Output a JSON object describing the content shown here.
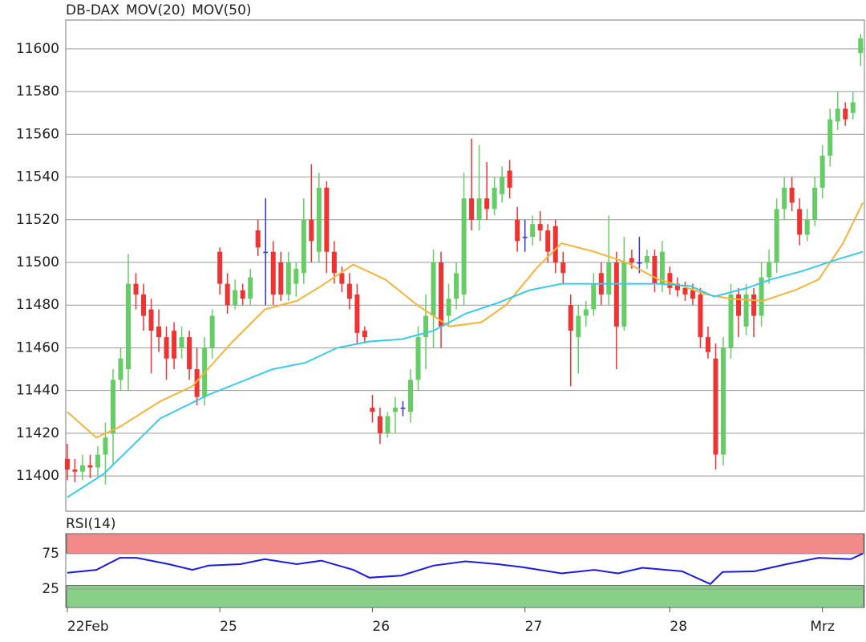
{
  "chart_data": [
    {
      "type": "candlestick",
      "x": [
        0,
        1,
        2,
        3,
        4,
        5,
        6,
        7,
        8,
        9,
        10,
        11,
        12,
        13,
        14,
        15,
        16,
        17,
        18,
        19,
        20,
        21,
        22,
        23,
        24,
        25,
        26,
        27,
        28,
        29,
        30,
        31,
        32,
        33,
        34,
        35,
        36,
        37,
        38,
        39,
        40,
        41,
        42,
        43,
        44,
        45,
        46,
        47,
        48,
        49,
        50,
        51,
        52,
        53,
        54,
        55,
        56,
        57,
        58,
        59,
        60,
        61,
        62,
        63,
        64,
        65,
        66,
        67,
        68,
        69,
        70,
        71,
        72,
        73,
        74,
        75,
        76,
        77,
        78,
        79,
        80,
        81,
        82,
        83,
        84,
        85,
        86,
        87,
        88,
        89,
        90,
        91,
        92,
        93,
        94,
        95,
        96,
        97,
        98,
        99,
        100,
        101,
        102,
        103,
        104
      ],
      "xlim": [
        -0.2,
        104.5
      ],
      "ylim": [
        11383.5,
        11613.5
      ],
      "yticks": [
        11400,
        11420,
        11440,
        11460,
        11480,
        11500,
        11520,
        11540,
        11560,
        11580,
        11600
      ],
      "grid": true,
      "series": [
        {
          "name": "DB-DAX",
          "color": "#f04a30",
          "up_color": "#66cc66",
          "down_color": "#ee3333",
          "flat_color": "#3333cc",
          "open": [
            11408,
            11403,
            11402,
            11405,
            11404,
            11410,
            11420,
            11445,
            11450,
            11490,
            11485,
            11478,
            11470,
            11465,
            11468,
            11460,
            11465,
            11450,
            11437,
            11460,
            11505,
            11490,
            11480,
            11487,
            11483,
            11515,
            11505,
            11505,
            11500,
            11485,
            11490,
            11495,
            11520,
            11505,
            11535,
            11505,
            11495,
            11490,
            11485,
            11468,
            11432,
            11428,
            11420,
            11430,
            11432,
            11430,
            11445,
            11465,
            11475,
            11500,
            11475,
            11483,
            11485,
            11530,
            11520,
            11530,
            11525,
            11532,
            11543,
            11520,
            11512,
            11512,
            11518,
            11515,
            11517,
            11500,
            11480,
            11465,
            11475,
            11478,
            11495,
            11485,
            11500,
            11470,
            11502,
            11500,
            11500,
            11503,
            11490,
            11495,
            11490,
            11488,
            11487,
            11485,
            11465,
            11455,
            11410,
            11460,
            11485,
            11470,
            11485,
            11475,
            11493,
            11500,
            11525,
            11535,
            11525,
            11513,
            11520,
            11535,
            11550,
            11566,
            11572,
            11570,
            11598
          ],
          "high": [
            11415,
            11408,
            11410,
            11410,
            11414,
            11425,
            11450,
            11460,
            11504,
            11495,
            11490,
            11483,
            11478,
            11470,
            11472,
            11470,
            11468,
            11460,
            11465,
            11478,
            11507,
            11495,
            11492,
            11490,
            11497,
            11520,
            11530,
            11510,
            11505,
            11505,
            11500,
            11530,
            11546,
            11542,
            11538,
            11510,
            11498,
            11495,
            11490,
            11470,
            11438,
            11432,
            11430,
            11437,
            11435,
            11450,
            11470,
            11485,
            11506,
            11505,
            11490,
            11500,
            11542,
            11558,
            11555,
            11547,
            11540,
            11545,
            11548,
            11526,
            11520,
            11522,
            11524,
            11518,
            11520,
            11505,
            11485,
            11480,
            11482,
            11495,
            11500,
            11522,
            11505,
            11512,
            11506,
            11512,
            11506,
            11506,
            11510,
            11498,
            11493,
            11491,
            11490,
            11488,
            11470,
            11462,
            11465,
            11490,
            11488,
            11490,
            11488,
            11500,
            11506,
            11530,
            11540,
            11540,
            11530,
            11525,
            11540,
            11555,
            11572,
            11580,
            11575,
            11580,
            11607
          ],
          "low": [
            11398,
            11397,
            11398,
            11399,
            11400,
            11396,
            11405,
            11440,
            11440,
            11478,
            11468,
            11448,
            11458,
            11445,
            11450,
            11455,
            11445,
            11433,
            11433,
            11455,
            11485,
            11476,
            11478,
            11480,
            11480,
            11503,
            11480,
            11480,
            11482,
            11482,
            11484,
            11490,
            11500,
            11500,
            11495,
            11490,
            11486,
            11478,
            11462,
            11462,
            11425,
            11415,
            11418,
            11420,
            11428,
            11425,
            11440,
            11450,
            11460,
            11460,
            11470,
            11478,
            11480,
            11515,
            11515,
            11520,
            11522,
            11528,
            11530,
            11505,
            11505,
            11508,
            11510,
            11500,
            11495,
            11490,
            11442,
            11448,
            11470,
            11475,
            11480,
            11480,
            11450,
            11468,
            11497,
            11495,
            11497,
            11486,
            11486,
            11485,
            11484,
            11482,
            11480,
            11460,
            11455,
            11403,
            11405,
            11455,
            11465,
            11466,
            11465,
            11470,
            11490,
            11495,
            11520,
            11524,
            11508,
            11510,
            11517,
            11530,
            11545,
            11562,
            11564,
            11567,
            11592
          ],
          "close": [
            11403,
            11402,
            11405,
            11404,
            11410,
            11418,
            11445,
            11455,
            11490,
            11485,
            11475,
            11468,
            11465,
            11455,
            11455,
            11465,
            11450,
            11437,
            11460,
            11475,
            11490,
            11480,
            11487,
            11483,
            11493,
            11507,
            11505,
            11485,
            11485,
            11500,
            11497,
            11520,
            11510,
            11535,
            11505,
            11495,
            11490,
            11483,
            11467,
            11465,
            11430,
            11420,
            11428,
            11432,
            11432,
            11445,
            11465,
            11475,
            11500,
            11470,
            11483,
            11495,
            11530,
            11520,
            11530,
            11525,
            11535,
            11540,
            11535,
            11510,
            11512,
            11518,
            11515,
            11505,
            11500,
            11495,
            11468,
            11475,
            11478,
            11490,
            11485,
            11500,
            11470,
            11500,
            11500,
            11500,
            11503,
            11490,
            11505,
            11488,
            11487,
            11485,
            11483,
            11465,
            11458,
            11410,
            11460,
            11485,
            11475,
            11485,
            11475,
            11493,
            11500,
            11525,
            11535,
            11528,
            11513,
            11520,
            11535,
            11550,
            11567,
            11572,
            11567,
            11575,
            11605
          ]
        },
        {
          "name": "MOV(20)",
          "color": "#f5b33a",
          "x": [
            0,
            3.8,
            6.9,
            12.2,
            16.4,
            21.7,
            25.9,
            30.1,
            33.3,
            37.5,
            41.7,
            45.9,
            50.1,
            54.3,
            57.5,
            61.7,
            64.8,
            69.1,
            73.3,
            77.5,
            80.6,
            83.8,
            86.9,
            91.2,
            95.4,
            98.5,
            101.7,
            104.3
          ],
          "values": [
            11430,
            11418,
            11423,
            11435,
            11442,
            11463,
            11478,
            11482,
            11489,
            11499,
            11492,
            11480,
            11470,
            11472,
            11480,
            11498,
            11509,
            11505,
            11500,
            11492,
            11489,
            11485,
            11483,
            11482,
            11487,
            11492,
            11509,
            11528
          ]
        },
        {
          "name": "MOV(50)",
          "color": "#3cc8ee",
          "x": [
            0,
            4.8,
            12.2,
            18.5,
            22.7,
            26.9,
            31.2,
            35.4,
            39.6,
            43.8,
            48,
            52.2,
            56.4,
            60.6,
            64.8,
            71.2,
            77.5,
            81.7,
            84.8,
            89.1,
            92.2,
            96.4,
            100.6,
            104.3
          ],
          "values": [
            11390,
            11401,
            11427,
            11438,
            11444,
            11450,
            11453,
            11460,
            11463,
            11464,
            11468,
            11476,
            11481,
            11487,
            11490,
            11490,
            11490,
            11489,
            11484,
            11488,
            11492,
            11496,
            11501,
            11505
          ]
        }
      ]
    },
    {
      "type": "line",
      "xlim": [
        -0.2,
        104.5
      ],
      "ylim": [
        -1,
        103
      ],
      "yticks": [
        25,
        75
      ],
      "xticks": [
        {
          "value": 0,
          "label": "22Feb"
        },
        {
          "value": 20,
          "label": "25"
        },
        {
          "value": 40,
          "label": "26"
        },
        {
          "value": 60,
          "label": "27"
        },
        {
          "value": 79,
          "label": "28"
        },
        {
          "value": 99,
          "label": "Mrz"
        }
      ],
      "bands": [
        {
          "from": 75,
          "to": 103,
          "color": "#f28a8a"
        },
        {
          "from": -1,
          "to": 30,
          "color": "#88d088"
        }
      ],
      "series": [
        {
          "name": "RSI(14)",
          "color": "#1a1ae0",
          "x": [
            0,
            3.8,
            6.9,
            9.1,
            13.3,
            16.4,
            18.5,
            22.7,
            25.9,
            30.1,
            33.3,
            37.5,
            39.6,
            43.8,
            48,
            52.2,
            56.4,
            59.6,
            64.8,
            69.1,
            72.2,
            75.4,
            80.6,
            84.3,
            85.9,
            90.1,
            94.3,
            98.5,
            102.7,
            104.3
          ],
          "values": [
            48,
            52,
            69,
            69,
            60,
            52,
            58,
            60,
            67,
            60,
            65,
            52,
            41,
            44,
            58,
            64,
            60,
            56,
            47,
            52,
            47,
            55,
            50,
            32,
            49,
            50,
            60,
            69,
            67,
            75
          ]
        }
      ]
    }
  ]
}
